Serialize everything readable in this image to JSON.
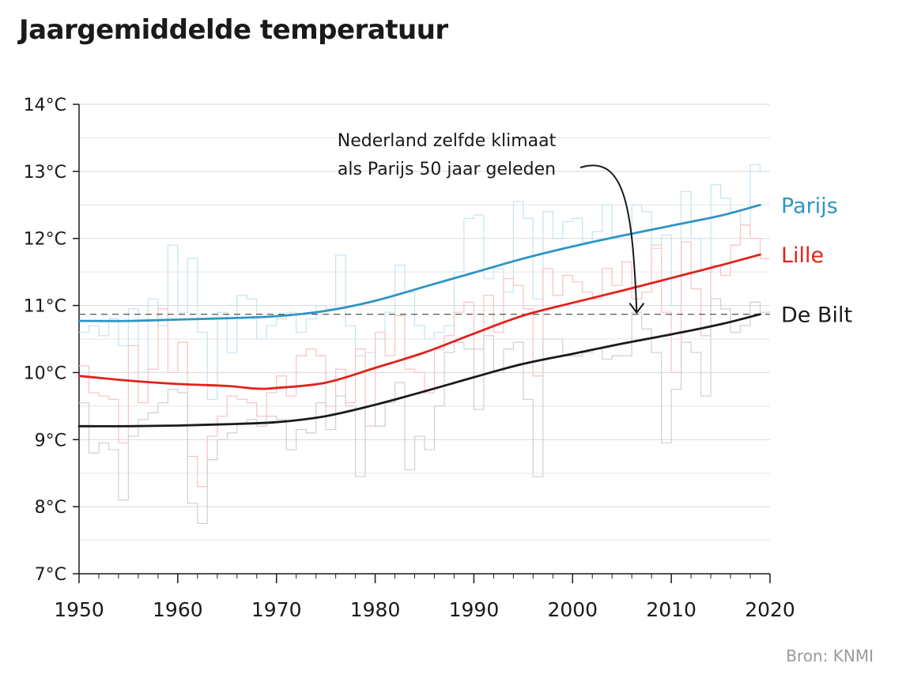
{
  "chart_data": {
    "type": "line",
    "title": "Jaargemiddelde temperatuur",
    "xlabel": "",
    "ylabel": "",
    "xlim": [
      1950,
      2020
    ],
    "ylim": [
      7,
      14
    ],
    "x_ticks": [
      1950,
      1960,
      1970,
      1980,
      1990,
      2000,
      2010,
      2020
    ],
    "x_tick_labels": [
      "1950",
      "1960",
      "1970",
      "1980",
      "1990",
      "2000",
      "2010",
      "2020"
    ],
    "y_ticks": [
      7,
      8,
      9,
      10,
      11,
      12,
      13,
      14
    ],
    "y_tick_labels": [
      "7°C",
      "8°C",
      "9°C",
      "10°C",
      "11°C",
      "12°C",
      "13°C",
      "14°C"
    ],
    "grid": true,
    "reference_line": {
      "y": 10.87,
      "style": "dashed"
    },
    "annotation": {
      "lines": [
        "Nederland zelfde klimaat",
        "als Parijs 50 jaar geleden"
      ],
      "arrow_to": {
        "x": 2006.5,
        "y": 10.87
      }
    },
    "source": "Bron: KNMI",
    "series": [
      {
        "name": "Parijs",
        "color": "#2e95c4",
        "annual_color": "#c9e5f2",
        "trend": {
          "x": [
            1950,
            1955,
            1960,
            1965,
            1970,
            1975,
            1980,
            1985,
            1990,
            1995,
            2000,
            2005,
            2010,
            2015,
            2019
          ],
          "y": [
            10.77,
            10.77,
            10.79,
            10.81,
            10.84,
            10.92,
            11.07,
            11.28,
            11.49,
            11.7,
            11.88,
            12.04,
            12.19,
            12.34,
            12.5
          ]
        },
        "annual": {
          "x": [
            1950,
            1951,
            1952,
            1953,
            1954,
            1955,
            1956,
            1957,
            1958,
            1959,
            1960,
            1961,
            1962,
            1963,
            1964,
            1965,
            1966,
            1967,
            1968,
            1969,
            1970,
            1971,
            1972,
            1973,
            1974,
            1975,
            1976,
            1977,
            1978,
            1979,
            1980,
            1981,
            1982,
            1983,
            1984,
            1985,
            1986,
            1987,
            1988,
            1989,
            1990,
            1991,
            1992,
            1993,
            1994,
            1995,
            1996,
            1997,
            1998,
            1999,
            2000,
            2001,
            2002,
            2003,
            2004,
            2005,
            2006,
            2007,
            2008,
            2009,
            2010,
            2011,
            2012,
            2013,
            2014,
            2015,
            2016,
            2017,
            2018,
            2019
          ],
          "y": [
            10.6,
            10.7,
            10.55,
            10.8,
            10.4,
            10.95,
            10.0,
            11.1,
            10.7,
            11.9,
            10.9,
            11.7,
            10.6,
            9.6,
            10.9,
            10.3,
            11.15,
            11.1,
            10.5,
            10.7,
            10.8,
            10.9,
            10.6,
            10.8,
            11.0,
            10.95,
            11.75,
            10.7,
            10.25,
            10.3,
            10.5,
            10.9,
            11.6,
            11.2,
            10.7,
            10.5,
            10.6,
            10.7,
            11.5,
            12.3,
            12.35,
            11.4,
            11.55,
            11.2,
            12.55,
            12.3,
            11.1,
            12.4,
            12.0,
            12.25,
            12.3,
            11.95,
            12.1,
            12.5,
            12.0,
            12.05,
            12.5,
            12.4,
            11.85,
            12.05,
            11.0,
            12.7,
            12.0,
            11.5,
            12.8,
            12.6,
            12.4,
            12.2,
            13.1,
            13.0
          ]
        }
      },
      {
        "name": "Lille",
        "color": "#e0221b",
        "annual_color": "#f6c8c6",
        "trend": {
          "x": [
            1950,
            1955,
            1960,
            1965,
            1968,
            1970,
            1975,
            1980,
            1985,
            1990,
            1995,
            2000,
            2005,
            2010,
            2015,
            2019
          ],
          "y": [
            9.95,
            9.88,
            9.83,
            9.8,
            9.76,
            9.77,
            9.85,
            10.07,
            10.3,
            10.58,
            10.85,
            11.04,
            11.22,
            11.41,
            11.6,
            11.76
          ]
        },
        "annual": {
          "x": [
            1950,
            1951,
            1952,
            1953,
            1954,
            1955,
            1956,
            1957,
            1958,
            1959,
            1960,
            1961,
            1962,
            1963,
            1964,
            1965,
            1966,
            1967,
            1968,
            1969,
            1970,
            1971,
            1972,
            1973,
            1974,
            1975,
            1976,
            1977,
            1978,
            1979,
            1980,
            1981,
            1982,
            1983,
            1984,
            1985,
            1986,
            1987,
            1988,
            1989,
            1990,
            1991,
            1992,
            1993,
            1994,
            1995,
            1996,
            1997,
            1998,
            1999,
            2000,
            2001,
            2002,
            2003,
            2004,
            2005,
            2006,
            2007,
            2008,
            2009,
            2010,
            2011,
            2012,
            2013,
            2014,
            2015,
            2016,
            2017,
            2018,
            2019
          ],
          "y": [
            10.1,
            9.7,
            9.65,
            9.6,
            8.95,
            10.4,
            9.55,
            10.05,
            10.95,
            10.0,
            10.45,
            8.75,
            8.3,
            9.05,
            9.35,
            9.65,
            9.6,
            9.55,
            9.35,
            9.7,
            9.95,
            9.65,
            10.25,
            10.35,
            10.25,
            9.5,
            10.05,
            9.55,
            10.35,
            9.2,
            10.6,
            10.25,
            10.85,
            10.05,
            10.0,
            9.7,
            10.35,
            10.55,
            10.9,
            11.05,
            10.35,
            11.15,
            10.6,
            11.4,
            11.3,
            10.95,
            9.95,
            11.55,
            11.15,
            11.45,
            11.35,
            11.2,
            11.1,
            11.55,
            11.3,
            11.65,
            11.1,
            11.2,
            11.9,
            10.9,
            10.0,
            11.95,
            11.25,
            10.55,
            11.6,
            11.45,
            11.9,
            12.2,
            12.0,
            11.7
          ]
        }
      },
      {
        "name": "De Bilt",
        "color": "#1a1a1a",
        "annual_color": "#d3d3d3",
        "trend": {
          "x": [
            1950,
            1955,
            1960,
            1965,
            1970,
            1975,
            1980,
            1985,
            1990,
            1995,
            2000,
            2005,
            2010,
            2015,
            2019
          ],
          "y": [
            9.2,
            9.2,
            9.21,
            9.23,
            9.26,
            9.35,
            9.52,
            9.72,
            9.93,
            10.13,
            10.28,
            10.43,
            10.57,
            10.72,
            10.87
          ]
        },
        "annual": {
          "x": [
            1950,
            1951,
            1952,
            1953,
            1954,
            1955,
            1956,
            1957,
            1958,
            1959,
            1960,
            1961,
            1962,
            1963,
            1964,
            1965,
            1966,
            1967,
            1968,
            1969,
            1970,
            1971,
            1972,
            1973,
            1974,
            1975,
            1976,
            1977,
            1978,
            1979,
            1980,
            1981,
            1982,
            1983,
            1984,
            1985,
            1986,
            1987,
            1988,
            1989,
            1990,
            1991,
            1992,
            1993,
            1994,
            1995,
            1996,
            1997,
            1998,
            1999,
            2000,
            2001,
            2002,
            2003,
            2004,
            2005,
            2006,
            2007,
            2008,
            2009,
            2010,
            2011,
            2012,
            2013,
            2014,
            2015,
            2016,
            2017,
            2018,
            2019
          ],
          "y": [
            9.55,
            8.8,
            8.95,
            8.85,
            8.1,
            9.05,
            9.3,
            9.4,
            9.55,
            9.75,
            9.7,
            8.05,
            7.75,
            8.7,
            9.0,
            9.1,
            9.25,
            9.3,
            9.2,
            9.35,
            9.3,
            8.85,
            9.15,
            9.1,
            9.55,
            9.15,
            9.65,
            9.5,
            8.45,
            9.5,
            9.2,
            9.55,
            9.85,
            8.55,
            9.05,
            8.85,
            9.5,
            10.3,
            10.45,
            10.35,
            9.45,
            10.55,
            10.0,
            10.35,
            10.45,
            9.6,
            8.45,
            10.5,
            10.5,
            10.25,
            10.25,
            10.3,
            10.35,
            10.2,
            10.25,
            10.25,
            10.9,
            10.65,
            10.3,
            8.95,
            9.75,
            10.45,
            10.3,
            9.65,
            11.1,
            10.95,
            10.6,
            10.7,
            11.05,
            10.9
          ]
        }
      }
    ]
  }
}
